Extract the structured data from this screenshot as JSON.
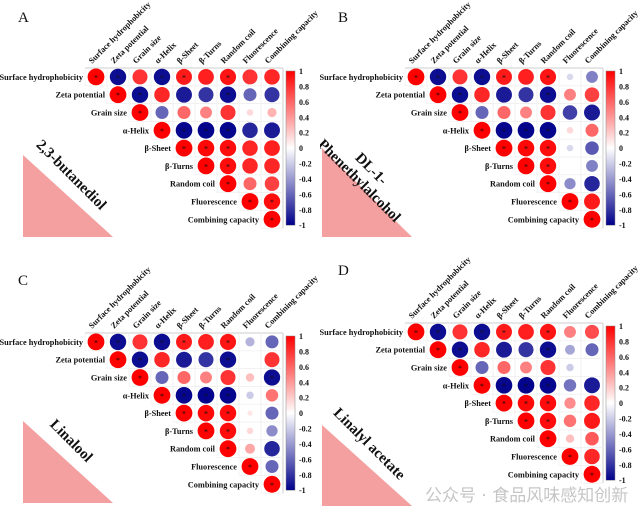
{
  "chart_data": [
    {
      "type": "heatmap",
      "panel_label": "A",
      "compound_label": [
        "2,3-butanediol"
      ],
      "variables": [
        "Surface hydrophobicity",
        "Zeta potential",
        "Grain size",
        "α-Helix",
        "β-Sheet",
        "β-Turns",
        "Random coil",
        "Fluorescence",
        "Combining capacity"
      ],
      "matrix": [
        [
          1,
          -0.95,
          0.8,
          -0.95,
          0.9,
          0.88,
          0.92,
          0.8,
          0.85
        ],
        [
          null,
          1,
          -0.95,
          0.85,
          -0.9,
          -0.8,
          -0.95,
          -0.6,
          -0.8
        ],
        [
          null,
          null,
          1,
          -0.6,
          0.6,
          0.5,
          0.8,
          0.15,
          0.3
        ],
        [
          null,
          null,
          null,
          1,
          -0.98,
          -0.99,
          -0.98,
          -0.85,
          -0.9
        ],
        [
          null,
          null,
          null,
          null,
          1,
          0.97,
          0.95,
          0.85,
          0.88
        ],
        [
          null,
          null,
          null,
          null,
          null,
          1,
          0.95,
          0.85,
          0.85
        ],
        [
          null,
          null,
          null,
          null,
          null,
          null,
          1,
          0.6,
          0.75
        ],
        [
          null,
          null,
          null,
          null,
          null,
          null,
          null,
          1,
          0.95
        ],
        [
          null,
          null,
          null,
          null,
          null,
          null,
          null,
          null,
          1
        ]
      ],
      "significant": [
        [
          0,
          0
        ],
        [
          0,
          1
        ],
        [
          0,
          3
        ],
        [
          0,
          4
        ],
        [
          0,
          6
        ],
        [
          1,
          1
        ],
        [
          1,
          2
        ],
        [
          1,
          6
        ],
        [
          2,
          2
        ],
        [
          3,
          3
        ],
        [
          3,
          4
        ],
        [
          3,
          5
        ],
        [
          3,
          6
        ],
        [
          4,
          4
        ],
        [
          4,
          5
        ],
        [
          4,
          6
        ],
        [
          5,
          5
        ],
        [
          5,
          6
        ],
        [
          6,
          6
        ],
        [
          7,
          7
        ],
        [
          7,
          8
        ],
        [
          8,
          8
        ]
      ],
      "colorbar": {
        "range": [
          -1,
          1
        ],
        "ticks": [
          "1",
          "0.8",
          "0.6",
          "0.4",
          "0.2",
          "0",
          "-0.2",
          "-0.4",
          "-0.6",
          "-0.8",
          "-1"
        ]
      }
    },
    {
      "type": "heatmap",
      "panel_label": "B",
      "compound_label": [
        "DL-1-",
        "Phenethylalcohol"
      ],
      "variables": [
        "Surface hydrophobicity",
        "Zeta potential",
        "Grain size",
        "α-Helix",
        "β-Sheet",
        "β-Turns",
        "Random coil",
        "Fluorescence",
        "Combining capacity"
      ],
      "matrix": [
        [
          1,
          -0.95,
          0.8,
          -0.95,
          0.9,
          0.88,
          0.92,
          -0.15,
          -0.5
        ],
        [
          null,
          1,
          -0.95,
          0.85,
          -0.9,
          -0.8,
          -0.95,
          0.5,
          0.75
        ],
        [
          null,
          null,
          1,
          -0.6,
          0.6,
          0.5,
          0.8,
          -0.75,
          -0.9
        ],
        [
          null,
          null,
          null,
          1,
          -0.98,
          -0.99,
          -0.98,
          0.15,
          0.6
        ],
        [
          null,
          null,
          null,
          null,
          1,
          0.97,
          0.95,
          -0.15,
          -0.65
        ],
        [
          null,
          null,
          null,
          null,
          null,
          1,
          0.95,
          0,
          -0.5
        ],
        [
          null,
          null,
          null,
          null,
          null,
          null,
          1,
          -0.45,
          -0.85
        ],
        [
          null,
          null,
          null,
          null,
          null,
          null,
          null,
          1,
          0.9
        ],
        [
          null,
          null,
          null,
          null,
          null,
          null,
          null,
          null,
          1
        ]
      ],
      "significant": [
        [
          0,
          0
        ],
        [
          0,
          1
        ],
        [
          0,
          3
        ],
        [
          0,
          4
        ],
        [
          0,
          6
        ],
        [
          1,
          1
        ],
        [
          1,
          2
        ],
        [
          1,
          6
        ],
        [
          2,
          2
        ],
        [
          3,
          3
        ],
        [
          3,
          4
        ],
        [
          3,
          5
        ],
        [
          3,
          6
        ],
        [
          4,
          4
        ],
        [
          4,
          5
        ],
        [
          4,
          6
        ],
        [
          5,
          5
        ],
        [
          5,
          6
        ],
        [
          6,
          6
        ],
        [
          7,
          7
        ],
        [
          8,
          8
        ]
      ],
      "colorbar": {
        "range": [
          -1,
          1
        ],
        "ticks": [
          "1",
          "0.8",
          "0.6",
          "0.4",
          "0.2",
          "0",
          "-0.2",
          "-0.4",
          "-0.6",
          "-0.8",
          "-1"
        ]
      }
    },
    {
      "type": "heatmap",
      "panel_label": "C",
      "compound_label": [
        "Linalool"
      ],
      "variables": [
        "Surface hydrophobicity",
        "Zeta potential",
        "Grain size",
        "α-Helix",
        "β-Sheet",
        "β-Turns",
        "Random coil",
        "Fluorescence",
        "Combining capacity"
      ],
      "matrix": [
        [
          1,
          -0.95,
          0.8,
          -0.95,
          0.9,
          0.88,
          0.92,
          -0.3,
          -0.6
        ],
        [
          null,
          1,
          -0.95,
          0.85,
          -0.9,
          -0.8,
          -0.95,
          0,
          0.8
        ],
        [
          null,
          null,
          1,
          -0.6,
          0.6,
          0.5,
          0.8,
          0.25,
          -0.95
        ],
        [
          null,
          null,
          null,
          1,
          -0.98,
          -0.99,
          -0.98,
          -0.2,
          0.55
        ],
        [
          null,
          null,
          null,
          null,
          1,
          0.97,
          0.95,
          0.1,
          -0.6
        ],
        [
          null,
          null,
          null,
          null,
          null,
          1,
          0.95,
          0.15,
          -0.45
        ],
        [
          null,
          null,
          null,
          null,
          null,
          null,
          1,
          0.35,
          -0.85
        ],
        [
          null,
          null,
          null,
          null,
          null,
          null,
          null,
          1,
          -0.6
        ],
        [
          null,
          null,
          null,
          null,
          null,
          null,
          null,
          null,
          1
        ]
      ],
      "significant": [
        [
          0,
          0
        ],
        [
          0,
          1
        ],
        [
          0,
          3
        ],
        [
          0,
          4
        ],
        [
          0,
          6
        ],
        [
          1,
          1
        ],
        [
          1,
          2
        ],
        [
          1,
          6
        ],
        [
          2,
          2
        ],
        [
          2,
          8
        ],
        [
          3,
          3
        ],
        [
          3,
          4
        ],
        [
          3,
          5
        ],
        [
          3,
          6
        ],
        [
          4,
          4
        ],
        [
          4,
          5
        ],
        [
          4,
          6
        ],
        [
          5,
          5
        ],
        [
          5,
          6
        ],
        [
          6,
          6
        ],
        [
          7,
          7
        ],
        [
          8,
          8
        ]
      ],
      "colorbar": {
        "range": [
          -1,
          1
        ],
        "ticks": [
          "1",
          "0.8",
          "0.6",
          "0.4",
          "0.2",
          "0",
          "-0.2",
          "-0.4",
          "-0.6",
          "-0.8",
          "-1"
        ]
      }
    },
    {
      "type": "heatmap",
      "panel_label": "D",
      "compound_label": [
        "Linalyl acetate"
      ],
      "variables": [
        "Surface hydrophobicity",
        "Zeta potential",
        "Grain size",
        "α-Helix",
        "β-Sheet",
        "β-Turns",
        "Random coil",
        "Fluorescence",
        "Combining capacity"
      ],
      "matrix": [
        [
          1,
          -0.95,
          0.8,
          -0.95,
          0.9,
          0.88,
          0.92,
          0.5,
          0.7
        ],
        [
          null,
          1,
          -0.95,
          0.85,
          -0.9,
          -0.8,
          -0.95,
          -0.35,
          -0.6
        ],
        [
          null,
          null,
          1,
          -0.6,
          0.6,
          0.5,
          0.8,
          -0.2,
          0.02
        ],
        [
          null,
          null,
          null,
          1,
          -0.98,
          -0.99,
          -0.98,
          -0.55,
          -0.9
        ],
        [
          null,
          null,
          null,
          null,
          1,
          0.97,
          0.95,
          0.45,
          0.85
        ],
        [
          null,
          null,
          null,
          null,
          null,
          1,
          0.95,
          0.55,
          0.9
        ],
        [
          null,
          null,
          null,
          null,
          null,
          null,
          1,
          0.25,
          0.65
        ],
        [
          null,
          null,
          null,
          null,
          null,
          null,
          null,
          1,
          0.85
        ],
        [
          null,
          null,
          null,
          null,
          null,
          null,
          null,
          null,
          1
        ]
      ],
      "significant": [
        [
          0,
          0
        ],
        [
          0,
          1
        ],
        [
          0,
          3
        ],
        [
          0,
          4
        ],
        [
          0,
          6
        ],
        [
          1,
          1
        ],
        [
          1,
          2
        ],
        [
          1,
          6
        ],
        [
          2,
          2
        ],
        [
          3,
          3
        ],
        [
          3,
          4
        ],
        [
          3,
          5
        ],
        [
          3,
          6
        ],
        [
          4,
          4
        ],
        [
          4,
          5
        ],
        [
          4,
          6
        ],
        [
          5,
          5
        ],
        [
          5,
          6
        ],
        [
          6,
          6
        ],
        [
          7,
          7
        ],
        [
          8,
          8
        ]
      ],
      "colorbar": {
        "range": [
          -1,
          1
        ],
        "ticks": [
          "1",
          "0.8",
          "0.6",
          "0.4",
          "0.2",
          "0",
          "-0.2",
          "-0.4",
          "-0.6",
          "-0.8",
          "-1"
        ]
      }
    }
  ],
  "colors": {
    "positive": "#ff0000",
    "zero": "#ffffff",
    "negative": "#00008b",
    "triangle": "#f4a0a0"
  },
  "watermark": "公众号 · 食品风味感知创新"
}
